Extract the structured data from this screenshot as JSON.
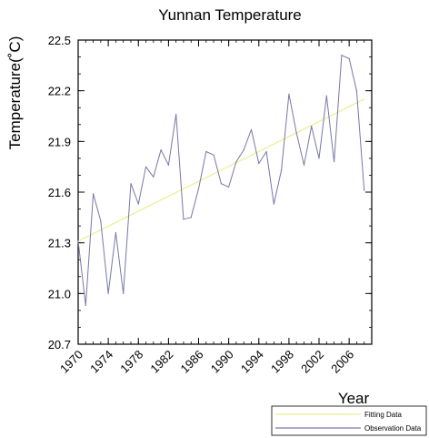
{
  "chart_data": {
    "type": "line",
    "title": "Yunnan Temperature",
    "xlabel": "Year",
    "ylabel": "Temperature(˚C)",
    "xlim": [
      1970,
      2009
    ],
    "ylim": [
      20.7,
      22.5
    ],
    "x_ticks": [
      "1970",
      "1974",
      "1978",
      "1982",
      "1986",
      "1990",
      "1994",
      "1998",
      "2002",
      "2006"
    ],
    "y_ticks": [
      "20.7",
      "21.0",
      "21.3",
      "21.6",
      "21.9",
      "22.2",
      "22.5"
    ],
    "grid": false,
    "legend_position": "bottom-right",
    "series": [
      {
        "name": "Fitting Data",
        "color": "#eeee99",
        "x": [
          1970,
          2008
        ],
        "values": [
          21.31,
          22.15
        ]
      },
      {
        "name": "Observation Data",
        "color": "#7777aa",
        "x": [
          1970,
          1971,
          1972,
          1973,
          1974,
          1975,
          1976,
          1977,
          1978,
          1979,
          1980,
          1981,
          1982,
          1983,
          1984,
          1985,
          1986,
          1987,
          1988,
          1989,
          1990,
          1991,
          1992,
          1993,
          1994,
          1995,
          1996,
          1997,
          1998,
          1999,
          2000,
          2001,
          2002,
          2003,
          2004,
          2005,
          2006,
          2007,
          2008
        ],
        "values": [
          21.31,
          20.93,
          21.59,
          21.43,
          21.0,
          21.36,
          21.0,
          21.65,
          21.53,
          21.75,
          21.69,
          21.85,
          21.76,
          22.06,
          21.44,
          21.45,
          21.62,
          21.84,
          21.82,
          21.65,
          21.63,
          21.78,
          21.85,
          21.97,
          21.77,
          21.84,
          21.53,
          21.73,
          22.18,
          21.95,
          21.76,
          21.99,
          21.8,
          22.17,
          21.78,
          22.41,
          22.39,
          22.2,
          21.61
        ]
      }
    ]
  }
}
